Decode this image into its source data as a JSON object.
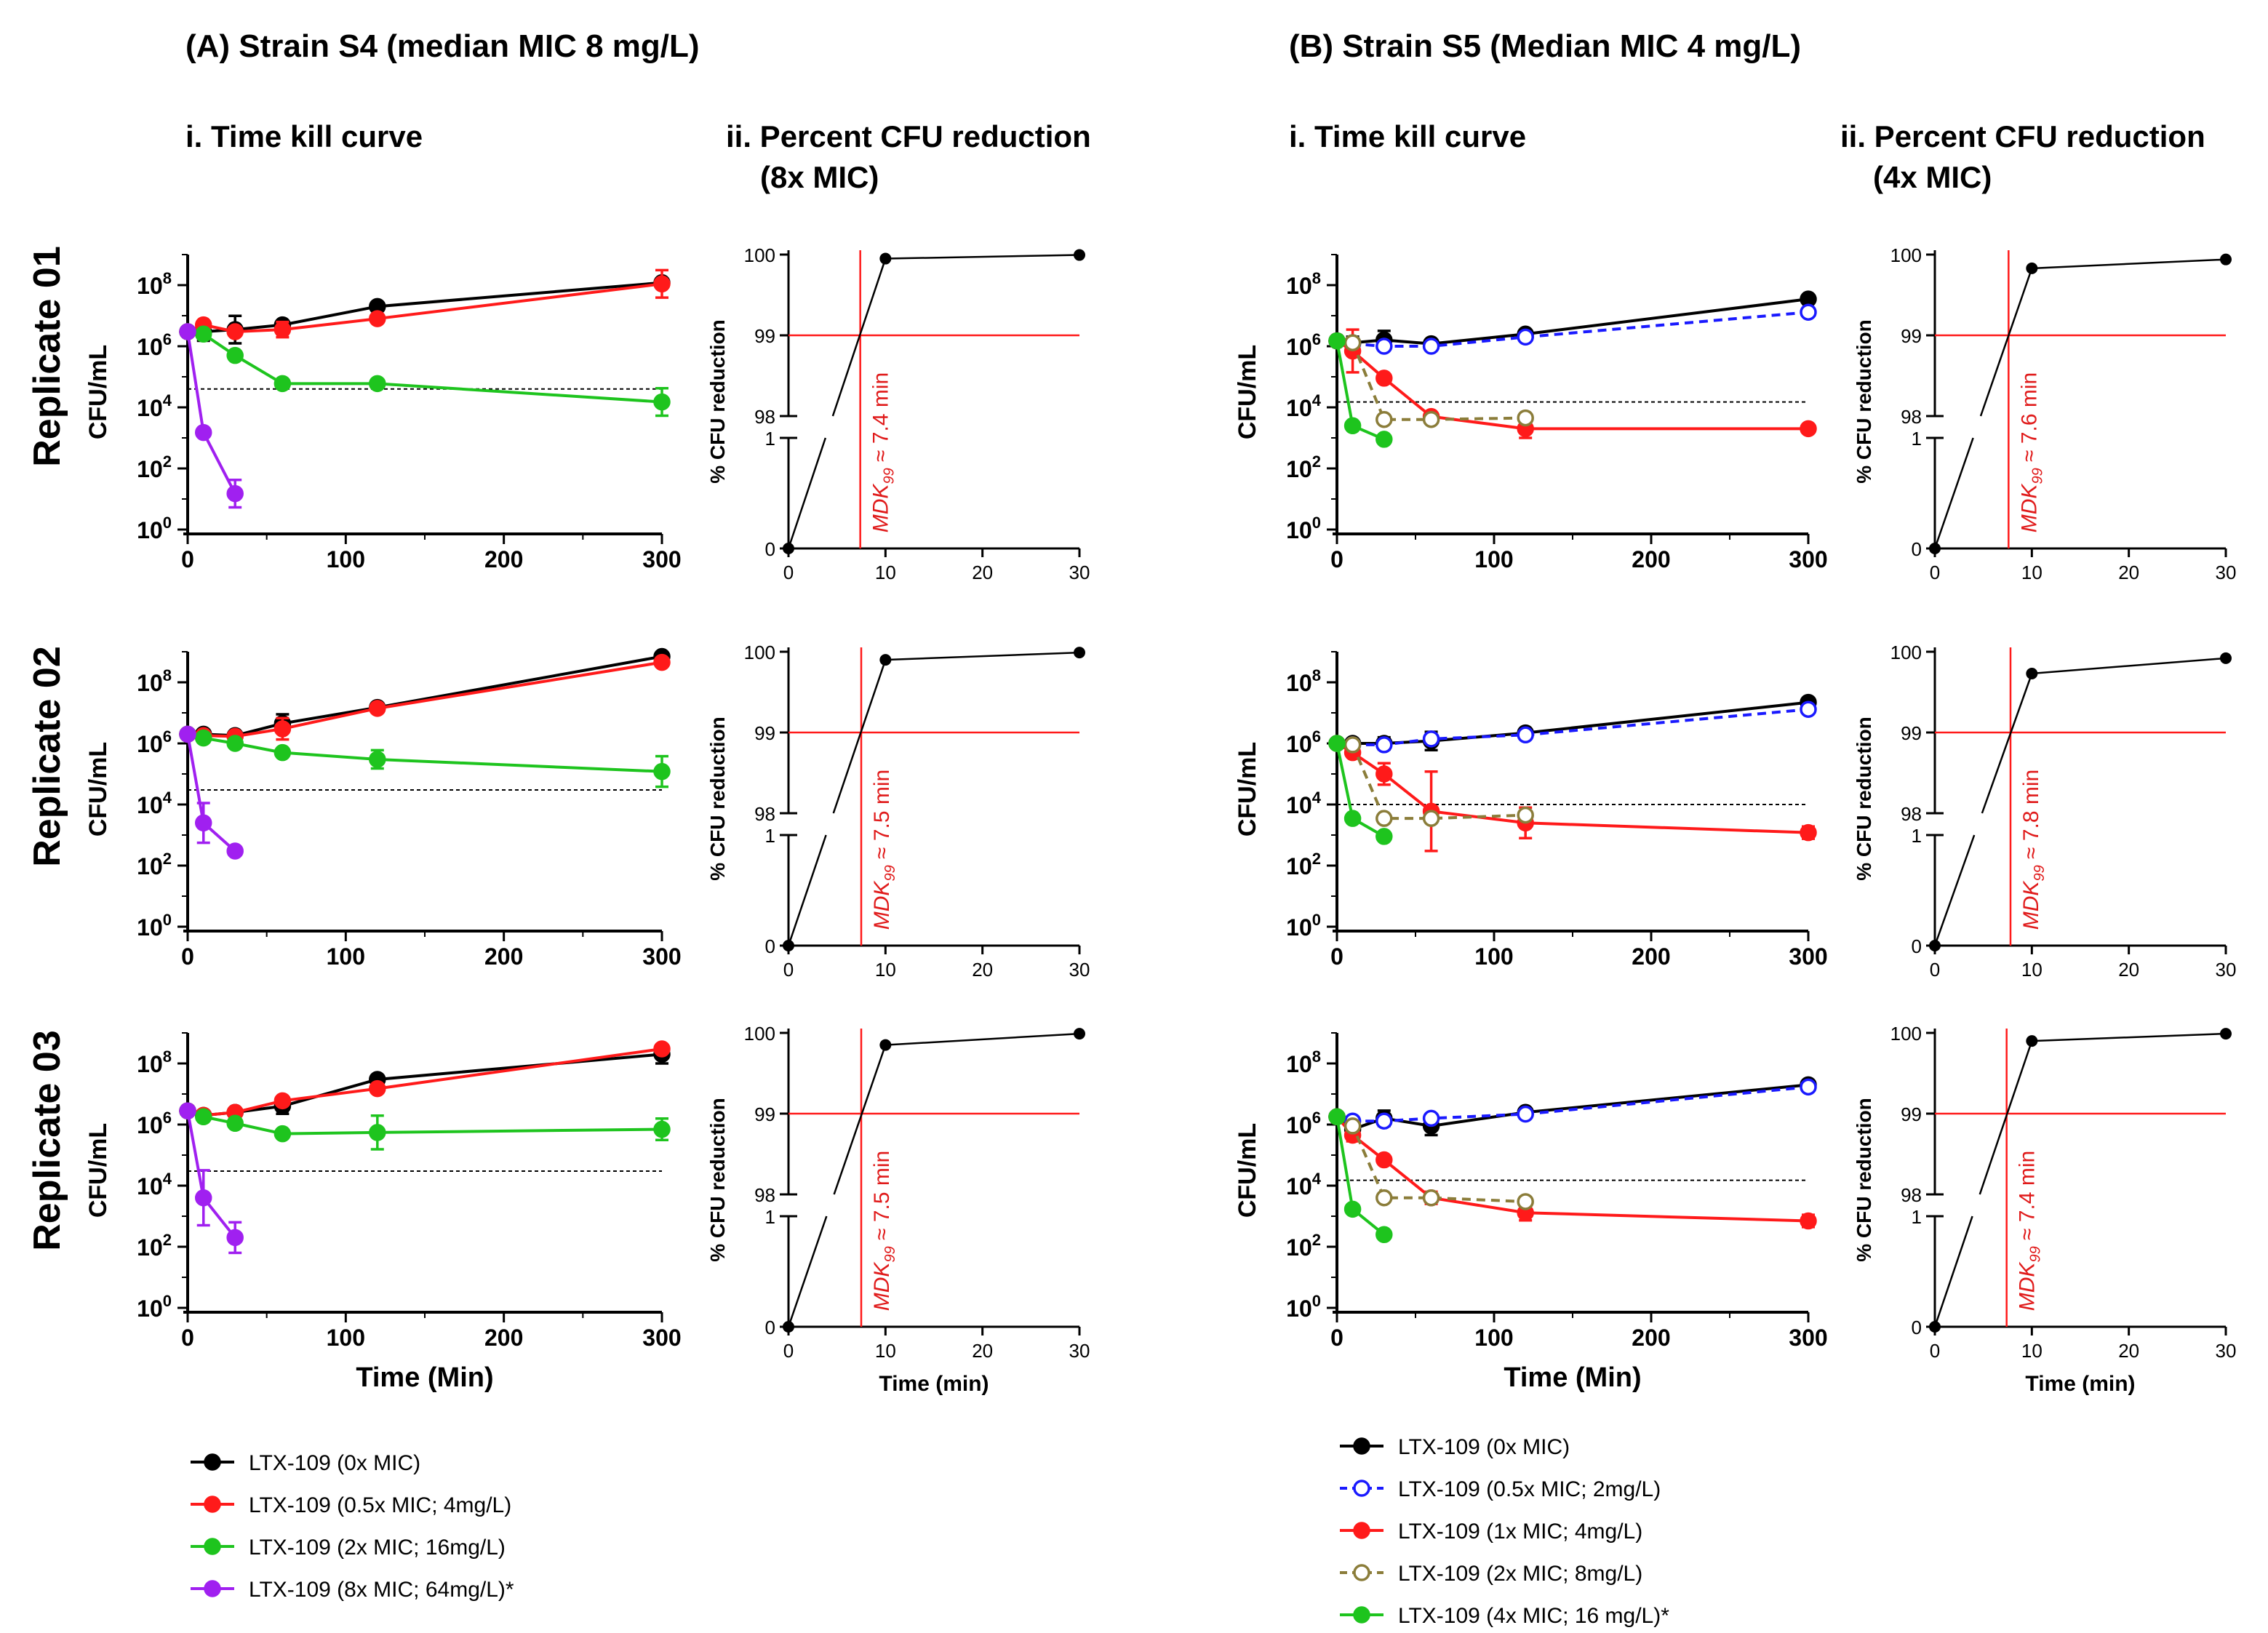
{
  "panels": {
    "A": {
      "title": "(A) Strain S4 (median MIC 8 mg/L)",
      "sub_kill": "i. Time kill curve",
      "sub_red_1": "ii. Percent CFU reduction",
      "sub_red_2": "(8x MIC)"
    },
    "B": {
      "title": "(B) Strain S5 (Median MIC 4 mg/L)",
      "sub_kill": "i. Time kill curve",
      "sub_red_1": "ii. Percent CFU reduction",
      "sub_red_2": "(4x MIC)"
    }
  },
  "replicates": [
    "Replicate 01",
    "Replicate 02",
    "Replicate 03"
  ],
  "axis": {
    "kill_xlabel": "Time (Min)",
    "kill_ylabel": "CFU/mL",
    "kill_xticks": [
      "0",
      "100",
      "200",
      "300"
    ],
    "kill_yticks_base": "10",
    "kill_yticks_exp": [
      "0",
      "2",
      "4",
      "6",
      "8"
    ],
    "red_xlabel": "Time (min)",
    "red_ylabel": "% CFU reduction",
    "red_xticks": [
      "0",
      "10",
      "20",
      "30"
    ],
    "red_yticks_upper": [
      "98",
      "99",
      "100"
    ],
    "red_yticks_lower": [
      "0",
      "1"
    ]
  },
  "legend_A": [
    {
      "label": "LTX-109 (0x MIC)",
      "color": "#000000",
      "filled": true,
      "dashed": false
    },
    {
      "label": "LTX-109 (0.5x MIC; 4mg/L)",
      "color": "#ff1a1a",
      "filled": true,
      "dashed": false
    },
    {
      "label": "LTX-109 (2x MIC; 16mg/L)",
      "color": "#1ec41e",
      "filled": true,
      "dashed": false
    },
    {
      "label": "LTX-109 (8x MIC; 64mg/L)*",
      "color": "#a020f0",
      "filled": true,
      "dashed": false
    }
  ],
  "legend_B": [
    {
      "label": "LTX-109 (0x MIC)",
      "color": "#000000",
      "filled": true,
      "dashed": false
    },
    {
      "label": "LTX-109 (0.5x MIC; 2mg/L)",
      "color": "#1a1aff",
      "filled": false,
      "dashed": true
    },
    {
      "label": "LTX-109 (1x MIC; 4mg/L)",
      "color": "#ff1a1a",
      "filled": true,
      "dashed": false
    },
    {
      "label": "LTX-109 (2x MIC; 8mg/L)",
      "color": "#8b7d3a",
      "filled": false,
      "dashed": true
    },
    {
      "label": "LTX-109 (4x MIC; 16 mg/L)*",
      "color": "#1ec41e",
      "filled": true,
      "dashed": false
    }
  ],
  "mdk": {
    "prefix": "MDK",
    "sub": "99",
    "A": [
      "≈ 7.4 min",
      "≈ 7.5 min",
      "≈ 7.5 min"
    ],
    "B": [
      "≈ 7.6 min",
      "≈ 7.8 min",
      "≈ 7.4 min"
    ]
  },
  "chart_data": [
    {
      "type": "line",
      "title": "(A) i. Time kill curve — Replicate 01",
      "xlabel": "Time (Min)",
      "ylabel": "CFU/mL",
      "yscale": "log10",
      "xlim": [
        0,
        300
      ],
      "ylim": [
        1,
        1000000000
      ],
      "threshold": 40000,
      "series": [
        {
          "name": "LTX-109 (0x MIC)",
          "x": [
            0,
            10,
            30,
            60,
            120,
            300
          ],
          "y": [
            3000000,
            3000000,
            3500000,
            5000000,
            20000000,
            120000000
          ],
          "err": [
            0.1,
            0.3,
            0.45,
            0.1,
            0.1,
            0.1
          ]
        },
        {
          "name": "LTX-109 (0.5x MIC; 4mg/L)",
          "x": [
            0,
            10,
            30,
            60,
            120,
            300
          ],
          "y": [
            3000000,
            5000000,
            3000000,
            3500000,
            8000000,
            110000000
          ],
          "err": [
            0.1,
            0.1,
            0.1,
            0.25,
            0.1,
            0.45
          ]
        },
        {
          "name": "LTX-109 (2x MIC; 16mg/L)",
          "x": [
            0,
            10,
            30,
            60,
            120,
            300
          ],
          "y": [
            3000000,
            2500000,
            500000,
            60000,
            60000,
            15000
          ],
          "err": [
            0.1,
            0.1,
            0.1,
            0.1,
            0.1,
            0.45
          ]
        },
        {
          "name": "LTX-109 (8x MIC; 64mg/L)*",
          "x": [
            0,
            10,
            30
          ],
          "y": [
            3000000,
            1500,
            15
          ],
          "err": [
            0.0,
            0.1,
            0.45
          ]
        }
      ]
    },
    {
      "type": "line",
      "title": "(A) i. Time kill curve — Replicate 02",
      "xlabel": "Time (Min)",
      "ylabel": "CFU/mL",
      "yscale": "log10",
      "xlim": [
        0,
        300
      ],
      "ylim": [
        1,
        1000000000
      ],
      "threshold": 30000,
      "series": [
        {
          "name": "LTX-109 (0x MIC)",
          "x": [
            0,
            10,
            30,
            60,
            120,
            300
          ],
          "y": [
            2000000,
            2000000,
            1800000,
            4500000,
            15000000,
            700000000
          ],
          "err": [
            0.1,
            0.1,
            0.1,
            0.3,
            0.1,
            0.1
          ]
        },
        {
          "name": "LTX-109 (0.5x MIC; 4mg/L)",
          "x": [
            0,
            10,
            30,
            60,
            120,
            300
          ],
          "y": [
            2000000,
            1800000,
            1700000,
            3000000,
            14000000,
            450000000
          ],
          "err": [
            0.1,
            0.1,
            0.1,
            0.35,
            0.1,
            0.1
          ]
        },
        {
          "name": "LTX-109 (2x MIC; 16mg/L)",
          "x": [
            0,
            10,
            30,
            60,
            120,
            300
          ],
          "y": [
            2000000,
            1500000,
            1000000,
            500000,
            300000,
            120000
          ],
          "err": [
            0.1,
            0.1,
            0.1,
            0.1,
            0.3,
            0.5
          ]
        },
        {
          "name": "LTX-109 (8x MIC; 64mg/L)*",
          "x": [
            0,
            10,
            30
          ],
          "y": [
            2000000,
            2500,
            300
          ],
          "err": [
            0.0,
            0.65,
            0.1
          ]
        }
      ]
    },
    {
      "type": "line",
      "title": "(A) i. Time kill curve — Replicate 03",
      "xlabel": "Time (Min)",
      "ylabel": "CFU/mL",
      "yscale": "log10",
      "xlim": [
        0,
        300
      ],
      "ylim": [
        1,
        1000000000
      ],
      "threshold": 30000,
      "series": [
        {
          "name": "LTX-109 (0x MIC)",
          "x": [
            0,
            10,
            30,
            60,
            120,
            300
          ],
          "y": [
            2800000,
            2000000,
            2500000,
            4000000,
            30000000,
            200000000
          ],
          "err": [
            0.1,
            0.1,
            0.1,
            0.25,
            0.1,
            0.3
          ]
        },
        {
          "name": "LTX-109 (0.5x MIC; 4mg/L)",
          "x": [
            0,
            10,
            30,
            60,
            120,
            300
          ],
          "y": [
            2800000,
            2000000,
            2500000,
            6000000,
            15000000,
            300000000
          ],
          "err": [
            0.1,
            0.1,
            0.1,
            0.1,
            0.1,
            0.1
          ]
        },
        {
          "name": "LTX-109 (2x MIC; 16mg/L)",
          "x": [
            0,
            10,
            30,
            60,
            120,
            300
          ],
          "y": [
            2800000,
            1800000,
            1100000,
            500000,
            550000,
            700000
          ],
          "err": [
            0.1,
            0.1,
            0.1,
            0.1,
            0.55,
            0.35
          ]
        },
        {
          "name": "LTX-109 (8x MIC; 64mg/L)*",
          "x": [
            0,
            10,
            30
          ],
          "y": [
            2800000,
            4000,
            200
          ],
          "err": [
            0.0,
            0.9,
            0.5
          ]
        }
      ]
    },
    {
      "type": "line",
      "title": "(A) ii. Percent CFU reduction (8x MIC) — Replicate 01",
      "xlabel": "Time (min)",
      "ylabel": "% CFU reduction",
      "xlim": [
        0,
        30
      ],
      "axis_break": "1 to 98",
      "series": [
        {
          "name": "8x MIC",
          "x": [
            0,
            10,
            30
          ],
          "y": [
            0,
            99.95,
            99.995
          ]
        }
      ],
      "hline": 99,
      "vline": 7.4
    },
    {
      "type": "line",
      "title": "(A) ii. Percent CFU reduction (8x MIC) — Replicate 02",
      "xlabel": "Time (min)",
      "ylabel": "% CFU reduction",
      "xlim": [
        0,
        30
      ],
      "axis_break": "1 to 98",
      "series": [
        {
          "name": "8x MIC",
          "x": [
            0,
            10,
            30
          ],
          "y": [
            0,
            99.9,
            99.99
          ]
        }
      ],
      "hline": 99,
      "vline": 7.5
    },
    {
      "type": "line",
      "title": "(A) ii. Percent CFU reduction (8x MIC) — Replicate 03",
      "xlabel": "Time (min)",
      "ylabel": "% CFU reduction",
      "xlim": [
        0,
        30
      ],
      "axis_break": "1 to 98",
      "series": [
        {
          "name": "8x MIC",
          "x": [
            0,
            10,
            30
          ],
          "y": [
            0,
            99.85,
            99.99
          ]
        }
      ],
      "hline": 99,
      "vline": 7.5
    },
    {
      "type": "line",
      "title": "(B) i. Time kill curve — Replicate 01",
      "xlabel": "Time (Min)",
      "ylabel": "CFU/mL",
      "yscale": "log10",
      "xlim": [
        0,
        300
      ],
      "ylim": [
        1,
        1000000000
      ],
      "threshold": 15000,
      "series": [
        {
          "name": "LTX-109 (0x MIC)",
          "x": [
            0,
            10,
            30,
            60,
            120,
            300
          ],
          "y": [
            1500000,
            1300000,
            1600000,
            1200000,
            2500000,
            35000000
          ],
          "err": [
            0.15,
            0.2,
            0.3,
            0.1,
            0.1,
            0.1
          ]
        },
        {
          "name": "LTX-109 (0.5x MIC; 2mg/L)",
          "x": [
            0,
            10,
            30,
            60,
            120,
            300
          ],
          "y": [
            1500000,
            1200000,
            1000000,
            1000000,
            2000000,
            13000000
          ],
          "err": [
            0.1,
            0.1,
            0.1,
            0.1,
            0.1,
            0.1
          ]
        },
        {
          "name": "LTX-109 (1x MIC; 4mg/L)",
          "x": [
            0,
            10,
            30,
            60,
            120,
            300
          ],
          "y": [
            1500000,
            700000,
            90000,
            5000,
            2000,
            2000
          ],
          "err": [
            0.1,
            0.7,
            0.1,
            0.1,
            0.3,
            0.1
          ]
        },
        {
          "name": "LTX-109 (2x MIC; 8mg/L)",
          "x": [
            0,
            10,
            30,
            60,
            120
          ],
          "y": [
            1500000,
            1300000,
            4000,
            4000,
            4500
          ],
          "err": [
            0.1,
            0.1,
            0.1,
            0.1,
            0.1
          ]
        },
        {
          "name": "LTX-109 (4x MIC; 16 mg/L)*",
          "x": [
            0,
            10,
            30
          ],
          "y": [
            1500000,
            2500,
            900
          ],
          "err": [
            0.0,
            0.1,
            0.1
          ]
        }
      ]
    },
    {
      "type": "line",
      "title": "(B) i. Time kill curve — Replicate 02",
      "xlabel": "Time (Min)",
      "ylabel": "CFU/mL",
      "yscale": "log10",
      "xlim": [
        0,
        300
      ],
      "ylim": [
        1,
        1000000000
      ],
      "threshold": 10000,
      "series": [
        {
          "name": "LTX-109 (0x MIC)",
          "x": [
            0,
            10,
            30,
            60,
            120,
            300
          ],
          "y": [
            1000000,
            1000000,
            1000000,
            1200000,
            2200000,
            22000000
          ],
          "err": [
            0.1,
            0.1,
            0.2,
            0.3,
            0.1,
            0.1
          ]
        },
        {
          "name": "LTX-109 (0.5x MIC; 2mg/L)",
          "x": [
            0,
            10,
            30,
            60,
            120,
            300
          ],
          "y": [
            1000000,
            900000,
            900000,
            1400000,
            1900000,
            13000000
          ],
          "err": [
            0.1,
            0.1,
            0.1,
            0.1,
            0.1,
            0.1
          ]
        },
        {
          "name": "LTX-109 (1x MIC; 4mg/L)",
          "x": [
            0,
            10,
            30,
            60,
            120,
            300
          ],
          "y": [
            1000000,
            500000,
            100000,
            6000,
            2500,
            1200
          ],
          "err": [
            0.1,
            0.1,
            0.35,
            1.3,
            0.5,
            0.2
          ]
        },
        {
          "name": "LTX-109 (2x MIC; 8mg/L)",
          "x": [
            0,
            10,
            30,
            60,
            120
          ],
          "y": [
            1000000,
            900000,
            3500,
            3500,
            4500
          ],
          "err": [
            0.1,
            0.1,
            0.1,
            0.1,
            0.1
          ]
        },
        {
          "name": "LTX-109 (4x MIC; 16 mg/L)*",
          "x": [
            0,
            10,
            30
          ],
          "y": [
            1000000,
            3500,
            900
          ],
          "err": [
            0.0,
            0.1,
            0.1
          ]
        }
      ]
    },
    {
      "type": "line",
      "title": "(B) i. Time kill curve — Replicate 03",
      "xlabel": "Time (Min)",
      "ylabel": "CFU/mL",
      "yscale": "log10",
      "xlim": [
        0,
        300
      ],
      "ylim": [
        1,
        1000000000
      ],
      "threshold": 15000,
      "series": [
        {
          "name": "LTX-109 (0x MIC)",
          "x": [
            0,
            10,
            30,
            60,
            120,
            300
          ],
          "y": [
            1800000,
            700000,
            1600000,
            900000,
            2500000,
            20000000
          ],
          "err": [
            0.1,
            0.3,
            0.25,
            0.3,
            0.1,
            0.1
          ]
        },
        {
          "name": "LTX-109 (0.5x MIC; 2mg/L)",
          "x": [
            0,
            10,
            30,
            60,
            120,
            300
          ],
          "y": [
            1800000,
            1300000,
            1300000,
            1600000,
            2200000,
            17000000
          ],
          "err": [
            0.1,
            0.1,
            0.1,
            0.1,
            0.1,
            0.1
          ]
        },
        {
          "name": "LTX-109 (1x MIC; 4mg/L)",
          "x": [
            0,
            10,
            30,
            60,
            120,
            300
          ],
          "y": [
            1800000,
            450000,
            70000,
            4000,
            1300,
            700
          ],
          "err": [
            0.1,
            0.2,
            0.1,
            0.2,
            0.25,
            0.2
          ]
        },
        {
          "name": "LTX-109 (2x MIC; 8mg/L)",
          "x": [
            0,
            10,
            30,
            60,
            120
          ],
          "y": [
            1800000,
            900000,
            4000,
            4000,
            3000
          ],
          "err": [
            0.1,
            0.1,
            0.1,
            0.1,
            0.1
          ]
        },
        {
          "name": "LTX-109 (4x MIC; 16 mg/L)*",
          "x": [
            0,
            10,
            30
          ],
          "y": [
            1800000,
            1700,
            250
          ],
          "err": [
            0.0,
            0.1,
            0.1
          ]
        }
      ]
    },
    {
      "type": "line",
      "title": "(B) ii. Percent CFU reduction (4x MIC) — Replicate 01",
      "xlabel": "Time (min)",
      "ylabel": "% CFU reduction",
      "xlim": [
        0,
        30
      ],
      "axis_break": "1 to 98",
      "series": [
        {
          "name": "4x MIC",
          "x": [
            0,
            10,
            30
          ],
          "y": [
            0,
            99.83,
            99.94
          ]
        }
      ],
      "hline": 99,
      "vline": 7.6
    },
    {
      "type": "line",
      "title": "(B) ii. Percent CFU reduction (4x MIC) — Replicate 02",
      "xlabel": "Time (min)",
      "ylabel": "% CFU reduction",
      "xlim": [
        0,
        30
      ],
      "axis_break": "1 to 98",
      "series": [
        {
          "name": "4x MIC",
          "x": [
            0,
            10,
            30
          ],
          "y": [
            0,
            99.73,
            99.92
          ]
        }
      ],
      "hline": 99,
      "vline": 7.8
    },
    {
      "type": "line",
      "title": "(B) ii. Percent CFU reduction (4x MIC) — Replicate 03",
      "xlabel": "Time (min)",
      "ylabel": "% CFU reduction",
      "xlim": [
        0,
        30
      ],
      "axis_break": "1 to 98",
      "series": [
        {
          "name": "4x MIC",
          "x": [
            0,
            10,
            30
          ],
          "y": [
            0,
            99.9,
            99.99
          ]
        }
      ],
      "hline": 99,
      "vline": 7.4
    }
  ]
}
